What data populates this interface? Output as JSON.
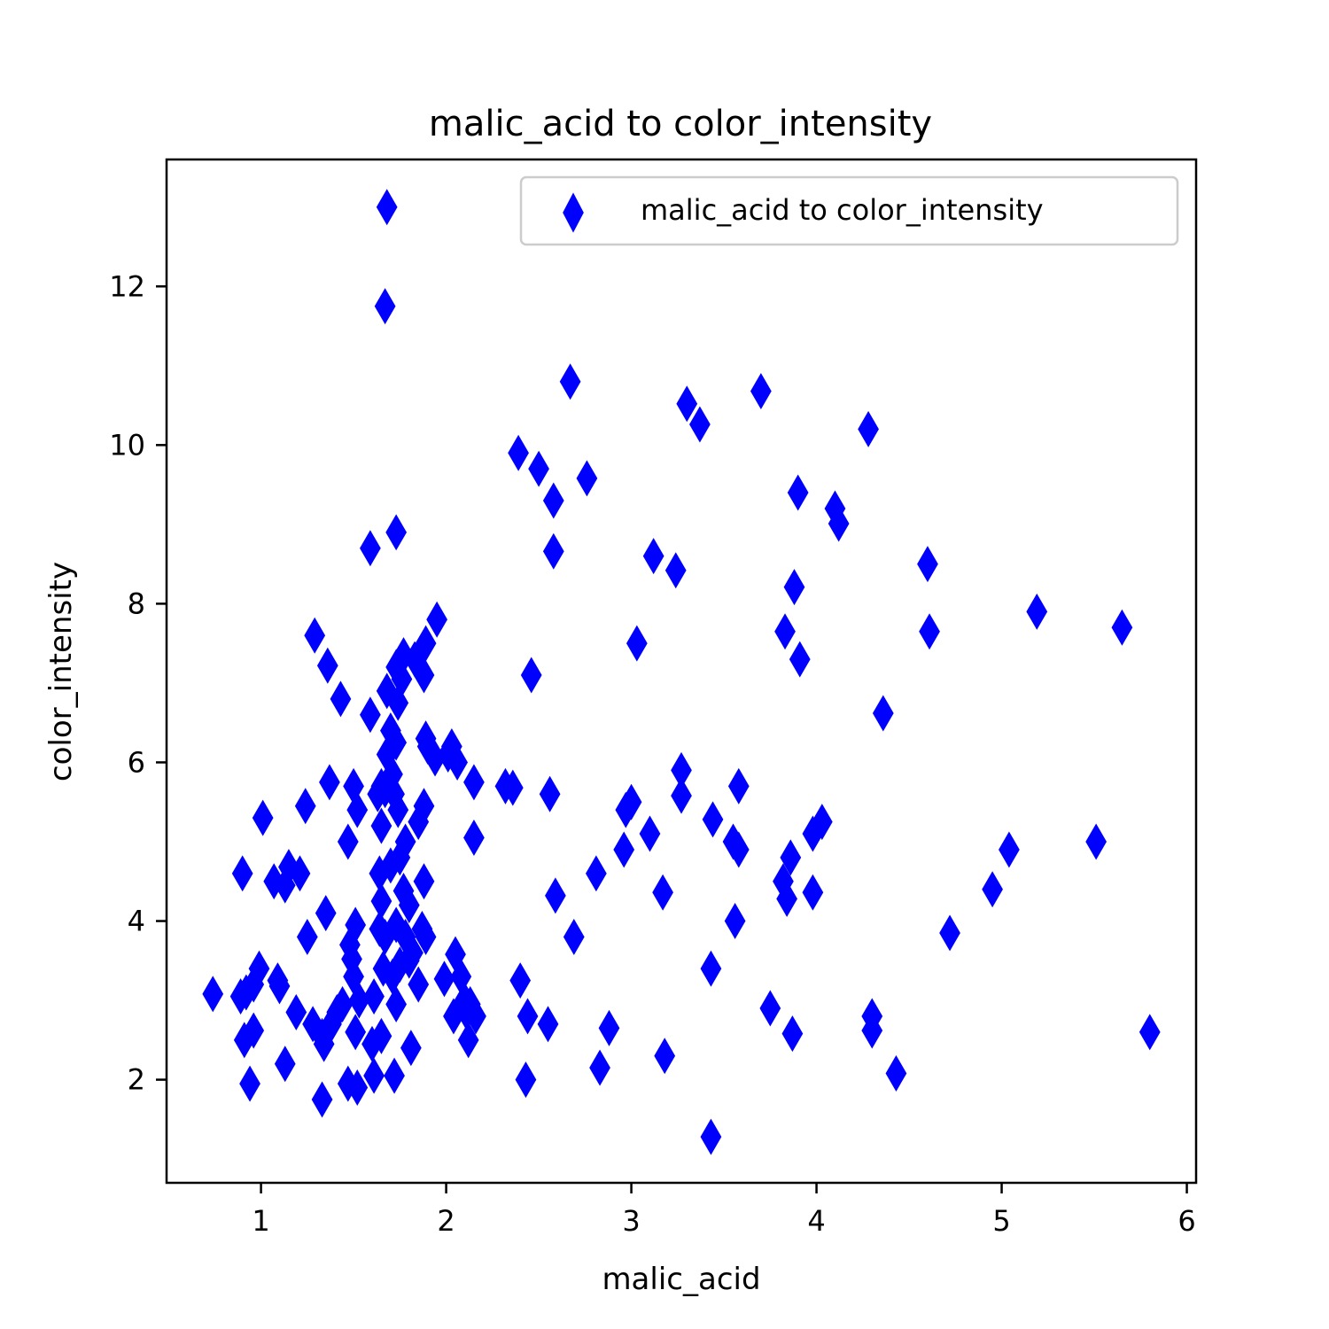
{
  "chart_data": {
    "type": "scatter",
    "title": "malic_acid to color_intensity",
    "xlabel": "malic_acid",
    "ylabel": "color_intensity",
    "xlim": [
      0.49,
      6.05
    ],
    "ylim": [
      0.7,
      13.6
    ],
    "xticks": [
      1,
      2,
      3,
      4,
      5,
      6
    ],
    "yticks": [
      2,
      4,
      6,
      8,
      10,
      12
    ],
    "grid": false,
    "legend_position": "top-right",
    "marker": "diamond",
    "series": [
      {
        "name": "malic_acid to color_intensity",
        "color": "#0000ff",
        "points": [
          [
            1.68,
            13.0
          ],
          [
            1.67,
            11.75
          ],
          [
            2.67,
            10.8
          ],
          [
            3.7,
            10.68
          ],
          [
            3.3,
            10.52
          ],
          [
            3.37,
            10.26
          ],
          [
            4.28,
            10.2
          ],
          [
            2.39,
            9.9
          ],
          [
            2.5,
            9.7
          ],
          [
            2.76,
            9.58
          ],
          [
            2.58,
            9.3
          ],
          [
            3.9,
            9.4
          ],
          [
            4.1,
            9.2
          ],
          [
            4.12,
            9.01
          ],
          [
            1.73,
            8.9
          ],
          [
            1.59,
            8.7
          ],
          [
            2.58,
            8.66
          ],
          [
            3.12,
            8.6
          ],
          [
            3.24,
            8.42
          ],
          [
            4.6,
            8.5
          ],
          [
            3.88,
            8.21
          ],
          [
            5.19,
            7.9
          ],
          [
            5.65,
            7.7
          ],
          [
            4.61,
            7.65
          ],
          [
            3.83,
            7.65
          ],
          [
            1.95,
            7.8
          ],
          [
            1.29,
            7.6
          ],
          [
            1.89,
            7.5
          ],
          [
            1.83,
            7.3
          ],
          [
            1.77,
            7.35
          ],
          [
            3.91,
            7.3
          ],
          [
            1.36,
            7.22
          ],
          [
            1.73,
            7.2
          ],
          [
            3.03,
            7.5
          ],
          [
            2.46,
            7.1
          ],
          [
            1.88,
            7.1
          ],
          [
            1.76,
            7.05
          ],
          [
            1.68,
            6.9
          ],
          [
            1.74,
            6.75
          ],
          [
            1.43,
            6.8
          ],
          [
            1.59,
            6.6
          ],
          [
            4.36,
            6.62
          ],
          [
            1.7,
            6.4
          ],
          [
            1.73,
            6.25
          ],
          [
            1.68,
            6.1
          ],
          [
            1.89,
            6.3
          ],
          [
            1.9,
            6.2
          ],
          [
            1.94,
            6.05
          ],
          [
            2.03,
            6.2
          ],
          [
            2.01,
            6.1
          ],
          [
            2.06,
            6.0
          ],
          [
            3.27,
            5.9
          ],
          [
            1.71,
            5.85
          ],
          [
            1.65,
            5.7
          ],
          [
            2.15,
            5.75
          ],
          [
            1.37,
            5.75
          ],
          [
            1.72,
            5.6
          ],
          [
            2.32,
            5.7
          ],
          [
            2.36,
            5.68
          ],
          [
            1.67,
            5.65
          ],
          [
            1.63,
            5.6
          ],
          [
            3.58,
            5.7
          ],
          [
            2.56,
            5.6
          ],
          [
            3.27,
            5.58
          ],
          [
            1.5,
            5.7
          ],
          [
            1.74,
            5.4
          ],
          [
            1.52,
            5.4
          ],
          [
            1.24,
            5.45
          ],
          [
            1.88,
            5.45
          ],
          [
            3.0,
            5.5
          ],
          [
            2.97,
            5.4
          ],
          [
            1.01,
            5.3
          ],
          [
            3.44,
            5.28
          ],
          [
            4.03,
            5.25
          ],
          [
            1.65,
            5.2
          ],
          [
            1.85,
            5.25
          ],
          [
            3.98,
            5.1
          ],
          [
            3.1,
            5.1
          ],
          [
            2.15,
            5.05
          ],
          [
            1.78,
            5.0
          ],
          [
            1.47,
            5.0
          ],
          [
            3.55,
            5.0
          ],
          [
            5.51,
            5.0
          ],
          [
            3.58,
            4.9
          ],
          [
            5.04,
            4.9
          ],
          [
            2.96,
            4.9
          ],
          [
            1.75,
            4.8
          ],
          [
            3.86,
            4.8
          ],
          [
            1.7,
            4.7
          ],
          [
            1.15,
            4.68
          ],
          [
            1.21,
            4.6
          ],
          [
            0.9,
            4.6
          ],
          [
            2.81,
            4.6
          ],
          [
            1.64,
            4.6
          ],
          [
            1.07,
            4.5
          ],
          [
            1.13,
            4.45
          ],
          [
            1.88,
            4.5
          ],
          [
            3.82,
            4.5
          ],
          [
            4.95,
            4.4
          ],
          [
            1.77,
            4.38
          ],
          [
            3.17,
            4.36
          ],
          [
            3.98,
            4.36
          ],
          [
            2.59,
            4.32
          ],
          [
            3.84,
            4.28
          ],
          [
            1.65,
            4.25
          ],
          [
            1.8,
            4.2
          ],
          [
            1.35,
            4.1
          ],
          [
            3.56,
            4.0
          ],
          [
            1.87,
            3.9
          ],
          [
            1.51,
            3.95
          ],
          [
            1.64,
            3.9
          ],
          [
            1.73,
            3.95
          ],
          [
            1.78,
            3.8
          ],
          [
            2.69,
            3.8
          ],
          [
            1.67,
            3.8
          ],
          [
            4.72,
            3.85
          ],
          [
            1.25,
            3.8
          ],
          [
            1.48,
            3.7
          ],
          [
            1.89,
            3.8
          ],
          [
            1.82,
            3.6
          ],
          [
            2.05,
            3.58
          ],
          [
            1.49,
            3.52
          ],
          [
            1.8,
            3.5
          ],
          [
            1.75,
            3.45
          ],
          [
            2.08,
            3.3
          ],
          [
            1.66,
            3.4
          ],
          [
            1.71,
            3.3
          ],
          [
            3.43,
            3.4
          ],
          [
            0.99,
            3.4
          ],
          [
            0.96,
            3.2
          ],
          [
            1.09,
            3.25
          ],
          [
            1.1,
            3.18
          ],
          [
            1.5,
            3.3
          ],
          [
            1.99,
            3.27
          ],
          [
            2.4,
            3.25
          ],
          [
            0.92,
            3.1
          ],
          [
            0.74,
            3.08
          ],
          [
            0.89,
            3.05
          ],
          [
            1.53,
            3.0
          ],
          [
            2.1,
            3.0
          ],
          [
            1.61,
            3.05
          ],
          [
            1.44,
            2.95
          ],
          [
            2.13,
            2.95
          ],
          [
            1.73,
            2.95
          ],
          [
            1.41,
            2.85
          ],
          [
            2.04,
            2.8
          ],
          [
            3.75,
            2.9
          ],
          [
            1.19,
            2.85
          ],
          [
            4.3,
            2.8
          ],
          [
            2.44,
            2.8
          ],
          [
            2.16,
            2.8
          ],
          [
            2.11,
            2.85
          ],
          [
            1.28,
            2.7
          ],
          [
            1.38,
            2.7
          ],
          [
            2.55,
            2.7
          ],
          [
            2.88,
            2.65
          ],
          [
            0.96,
            2.62
          ],
          [
            1.51,
            2.6
          ],
          [
            3.87,
            2.58
          ],
          [
            4.3,
            2.62
          ],
          [
            1.33,
            2.55
          ],
          [
            2.12,
            2.5
          ],
          [
            1.6,
            2.45
          ],
          [
            0.91,
            2.5
          ],
          [
            1.65,
            2.55
          ],
          [
            1.81,
            2.4
          ],
          [
            1.34,
            2.45
          ],
          [
            3.18,
            2.3
          ],
          [
            1.13,
            2.2
          ],
          [
            2.83,
            2.15
          ],
          [
            4.43,
            2.08
          ],
          [
            1.61,
            2.05
          ],
          [
            1.72,
            2.05
          ],
          [
            2.43,
            2.0
          ],
          [
            1.47,
            1.95
          ],
          [
            1.52,
            1.9
          ],
          [
            0.94,
            1.95
          ],
          [
            1.33,
            1.75
          ],
          [
            3.43,
            1.28
          ],
          [
            5.8,
            2.6
          ],
          [
            1.85,
            3.2
          ]
        ]
      }
    ]
  }
}
